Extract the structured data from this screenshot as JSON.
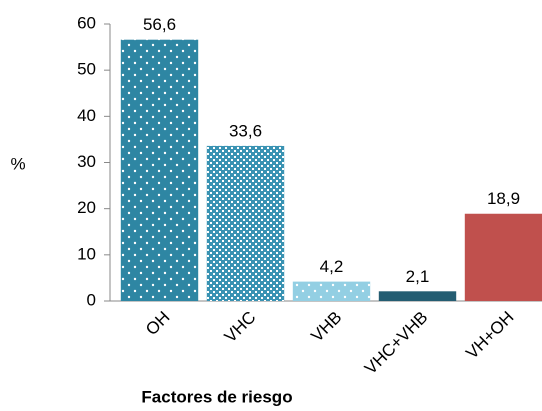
{
  "chart_data": {
    "type": "bar",
    "y_label": "%",
    "x_label": "Factores de riesgo",
    "categories": [
      "OH",
      "VHC",
      "VHB",
      "VHC+VHB",
      "VH+OH"
    ],
    "values": [
      56.6,
      33.6,
      4.2,
      2.1,
      18.9
    ],
    "value_labels": [
      "56,6",
      "33,6",
      "4,2",
      "2,1",
      "18,9"
    ],
    "colors": [
      "#2e86a3",
      "#3a93b3",
      "#93cfe3",
      "#245d72",
      "#c0504d"
    ],
    "patterns": [
      "dots",
      "checks",
      "dots",
      "none",
      "none"
    ],
    "ylim": [
      0,
      60
    ],
    "yticks": [
      0,
      10,
      20,
      30,
      40,
      50,
      60
    ],
    "grid": false
  }
}
